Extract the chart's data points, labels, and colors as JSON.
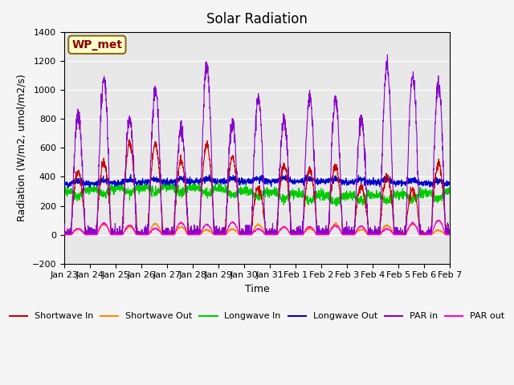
{
  "title": "Solar Radiation",
  "xlabel": "Time",
  "ylabel": "Radiation (W/m2, umol/m2/s)",
  "ylim": [
    -200,
    1400
  ],
  "yticks": [
    -200,
    0,
    200,
    400,
    600,
    800,
    1000,
    1200,
    1400
  ],
  "background_color": "#e8e8e8",
  "annotation_label": "WP_met",
  "annotation_bgcolor": "#ffffcc",
  "annotation_edgecolor": "#8B6914",
  "annotation_textcolor": "#8B0000",
  "line_colors": {
    "shortwave_in": "#cc0000",
    "shortwave_out": "#ff8800",
    "longwave_in": "#00cc00",
    "longwave_out": "#0000cc",
    "par_in": "#8800cc",
    "par_out": "#ff00cc"
  },
  "legend_labels": [
    "Shortwave In",
    "Shortwave Out",
    "Longwave In",
    "Longwave Out",
    "PAR in",
    "PAR out"
  ],
  "x_tick_labels": [
    "Jan 23",
    "Jan 24",
    "Jan 25",
    "Jan 26",
    "Jan 27",
    "Jan 28",
    "Jan 29",
    "Jan 30",
    "Jan 31",
    "Feb 1",
    "Feb 2",
    "Feb 3",
    "Feb 4",
    "Feb 5",
    "Feb 6",
    "Feb 7"
  ],
  "num_days": 15,
  "points_per_day": 144
}
